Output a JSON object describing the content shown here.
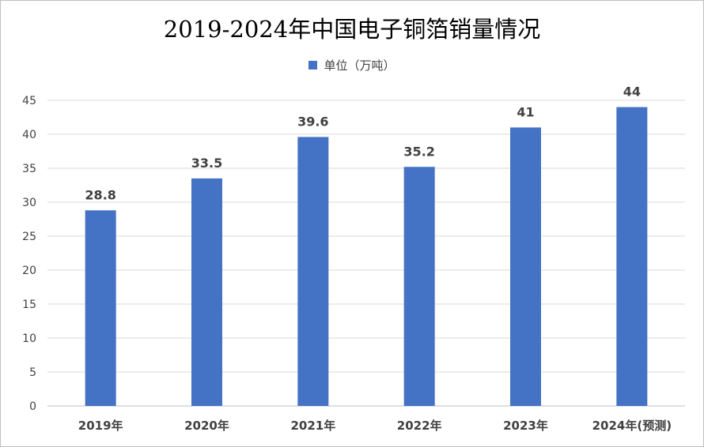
{
  "chart_data": {
    "type": "bar",
    "title": "2019-2024年中国电子铜箔销量情况",
    "categories": [
      "2019年",
      "2020年",
      "2021年",
      "2022年",
      "2023年",
      "2024年(预测)"
    ],
    "series": [
      {
        "name": "单位（万吨）",
        "values": [
          28.8,
          33.5,
          39.6,
          35.2,
          41,
          44
        ],
        "data_labels": [
          "28.8",
          "33.5",
          "39.6",
          "35.2",
          "41",
          "44"
        ],
        "color": "#4472C4"
      }
    ],
    "ylim": [
      0,
      45
    ],
    "yticks": [
      0,
      5,
      10,
      15,
      20,
      25,
      30,
      35,
      40,
      45
    ],
    "grid": true,
    "legend_position": "top"
  }
}
